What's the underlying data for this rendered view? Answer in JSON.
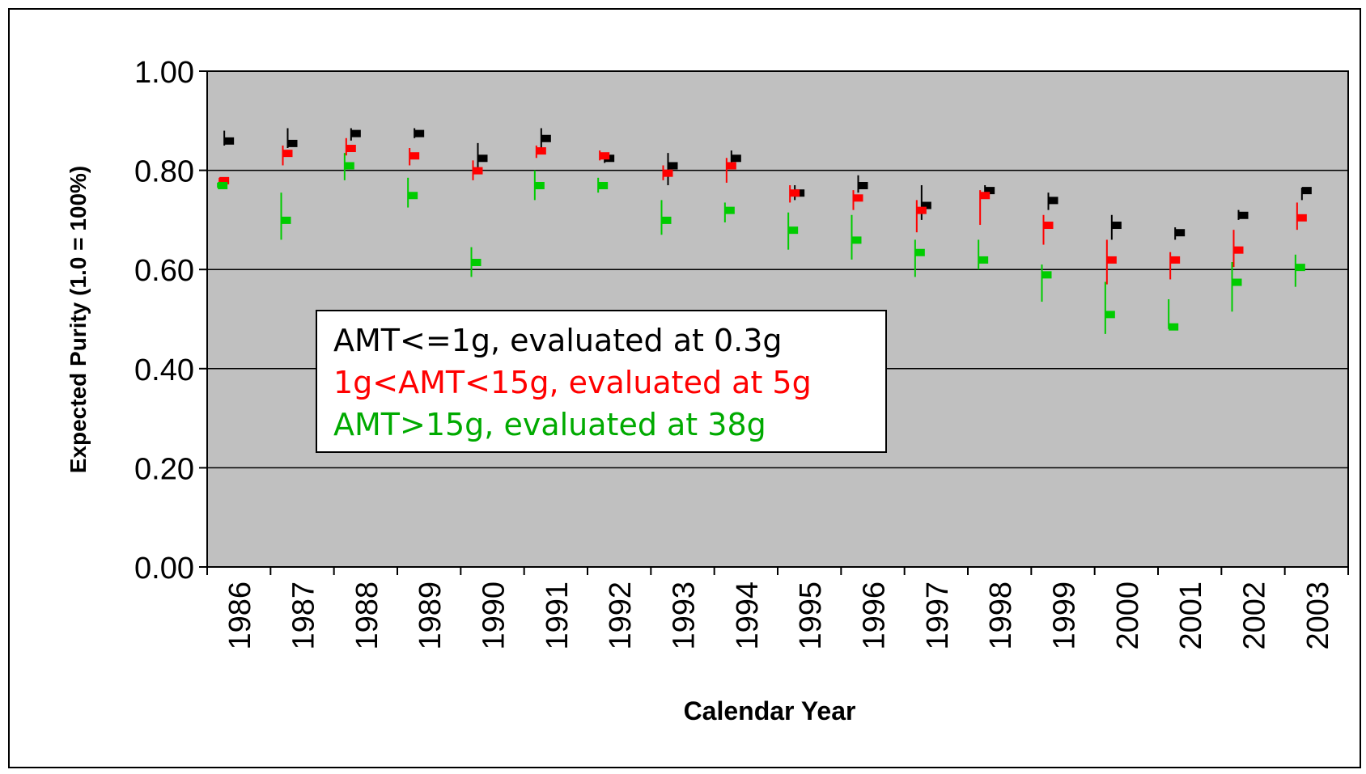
{
  "chart_data": {
    "type": "scatter",
    "title": "",
    "xlabel": "Calendar Year",
    "ylabel": "Expected Purity (1.0 = 100%)",
    "ylim": [
      0,
      1
    ],
    "yticks": [
      "0.00",
      "0.20",
      "0.40",
      "0.60",
      "0.80",
      "1.00"
    ],
    "grid": true,
    "legend_position": "center-left",
    "categories": [
      "1986",
      "1987",
      "1988",
      "1989",
      "1990",
      "1991",
      "1992",
      "1993",
      "1994",
      "1995",
      "1996",
      "1997",
      "1998",
      "1999",
      "2000",
      "2001",
      "2002",
      "2003"
    ],
    "series": [
      {
        "name": "AMT<=1g, evaluated at 0.3g",
        "color": "#000000",
        "values": [
          0.86,
          0.855,
          0.875,
          0.875,
          0.825,
          0.865,
          0.825,
          0.81,
          0.825,
          0.755,
          0.77,
          0.73,
          0.76,
          0.74,
          0.69,
          0.675,
          0.71,
          0.76
        ],
        "low": [
          0.85,
          0.845,
          0.86,
          0.865,
          0.8,
          0.845,
          0.815,
          0.77,
          0.815,
          0.74,
          0.755,
          0.7,
          0.745,
          0.72,
          0.66,
          0.66,
          0.7,
          0.74
        ],
        "high": [
          0.88,
          0.885,
          0.885,
          0.885,
          0.855,
          0.885,
          0.835,
          0.835,
          0.84,
          0.77,
          0.79,
          0.77,
          0.77,
          0.755,
          0.71,
          0.685,
          0.72,
          0.765
        ]
      },
      {
        "name": "1g<AMT<15g, evaluated at 5g",
        "color": "#ff0000",
        "values": [
          0.78,
          0.835,
          0.845,
          0.83,
          0.8,
          0.84,
          0.83,
          0.795,
          0.81,
          0.755,
          0.745,
          0.72,
          0.75,
          0.69,
          0.62,
          0.62,
          0.64,
          0.705
        ],
        "low": [
          0.775,
          0.81,
          0.83,
          0.81,
          0.78,
          0.825,
          0.82,
          0.78,
          0.775,
          0.735,
          0.72,
          0.675,
          0.69,
          0.65,
          0.57,
          0.58,
          0.605,
          0.68
        ],
        "high": [
          0.785,
          0.85,
          0.865,
          0.845,
          0.82,
          0.85,
          0.84,
          0.81,
          0.825,
          0.77,
          0.76,
          0.74,
          0.76,
          0.71,
          0.66,
          0.635,
          0.68,
          0.735
        ]
      },
      {
        "name": "AMT>15g, evaluated at 38g",
        "color": "#00cc00",
        "values": [
          0.77,
          0.7,
          0.81,
          0.75,
          0.615,
          0.77,
          0.77,
          0.7,
          0.72,
          0.68,
          0.66,
          0.635,
          0.62,
          0.59,
          0.51,
          0.485,
          0.575,
          0.605
        ],
        "low": [
          0.765,
          0.66,
          0.78,
          0.725,
          0.585,
          0.74,
          0.755,
          0.67,
          0.695,
          0.64,
          0.62,
          0.585,
          0.6,
          0.535,
          0.47,
          0.48,
          0.515,
          0.565
        ],
        "high": [
          0.775,
          0.755,
          0.835,
          0.785,
          0.645,
          0.8,
          0.785,
          0.74,
          0.735,
          0.715,
          0.71,
          0.66,
          0.66,
          0.61,
          0.575,
          0.54,
          0.615,
          0.63
        ]
      }
    ]
  },
  "legend": {
    "items": [
      {
        "label": "AMT<=1g, evaluated at 0.3g",
        "color": "#000000"
      },
      {
        "label": "1g<AMT<15g, evaluated at 5g",
        "color": "#ff0000"
      },
      {
        "label": "AMT>15g, evaluated at 38g",
        "color": "#00aa00"
      }
    ]
  }
}
